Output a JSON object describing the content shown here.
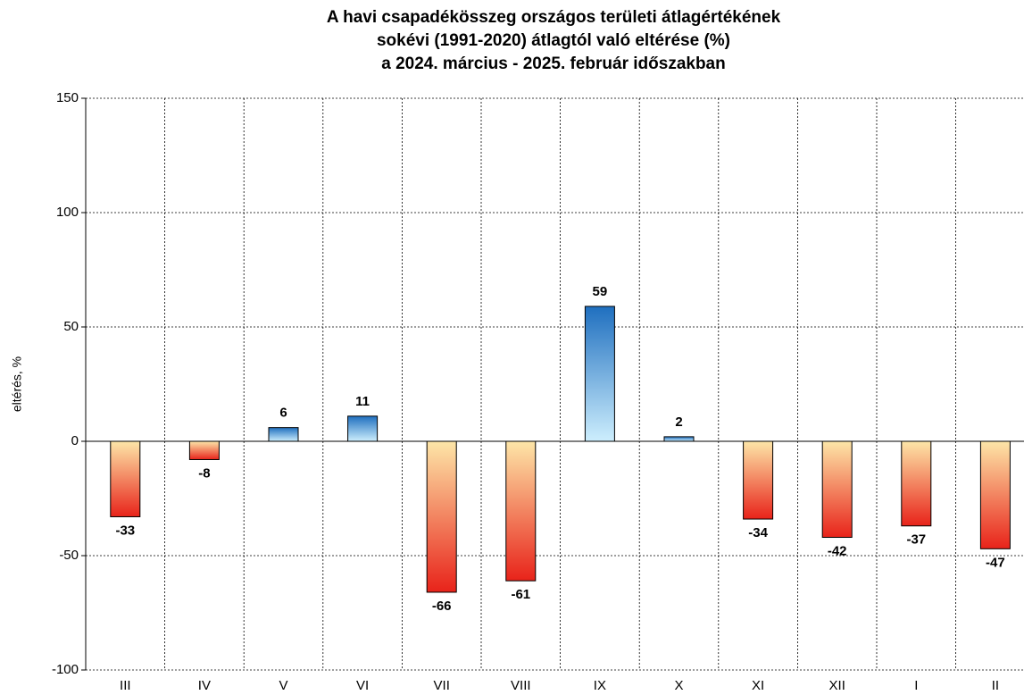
{
  "chart_data": {
    "type": "bar",
    "title": [
      "A havi csapadékösszeg országos területi átlagértékének",
      "sokévi (1991-2020) átlagtól való eltérése (%)",
      "a 2024. március - 2025. február időszakban"
    ],
    "y_label": "eltérés, %",
    "categories": [
      "III",
      "IV",
      "V",
      "VI",
      "VII",
      "VIII",
      "IX",
      "X",
      "XI",
      "XII",
      "I",
      "II"
    ],
    "values": [
      -33,
      -8,
      6,
      11,
      -66,
      -61,
      59,
      2,
      -34,
      -42,
      -37,
      -47
    ],
    "positive_color": "#1f6fbf",
    "negative_color": "#e8231a",
    "ylim": [
      -100,
      150
    ],
    "yticks": [
      -100,
      -50,
      0,
      50,
      100,
      150
    ],
    "grid": true
  }
}
